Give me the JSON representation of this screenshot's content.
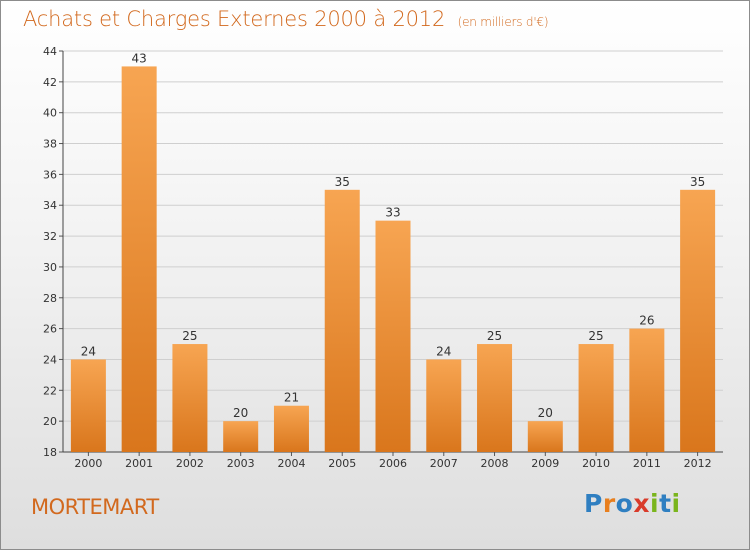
{
  "title": "Achats et Charges Externes 2000 à 2012",
  "subtitle": "(en milliers d'€)",
  "commune": "MORTEMART",
  "logo": {
    "letters": [
      "P",
      "r",
      "o",
      "x",
      "i",
      "t",
      "i"
    ]
  },
  "colors": {
    "accent": "#d2691e",
    "bar_top": "#f7a552",
    "bar_bottom": "#d9761c",
    "logo": [
      "#2f7fc1",
      "#e87f1e",
      "#2f7fc1",
      "#d93b2a",
      "#7ab51d",
      "#2f7fc1",
      "#7ab51d"
    ]
  },
  "chart_data": {
    "type": "bar",
    "title": "Achats et Charges Externes 2000 à 2012",
    "subtitle": "(en milliers d'€)",
    "categories": [
      "2000",
      "2001",
      "2002",
      "2003",
      "2004",
      "2005",
      "2006",
      "2007",
      "2008",
      "2009",
      "2010",
      "2011",
      "2012"
    ],
    "values": [
      24,
      43,
      25,
      20,
      21,
      35,
      33,
      24,
      25,
      20,
      25,
      26,
      35
    ],
    "ylim": [
      18,
      44
    ],
    "yticks": [
      18,
      20,
      22,
      24,
      26,
      28,
      30,
      32,
      34,
      36,
      38,
      40,
      42,
      44
    ],
    "grid": true,
    "legend": "none"
  }
}
